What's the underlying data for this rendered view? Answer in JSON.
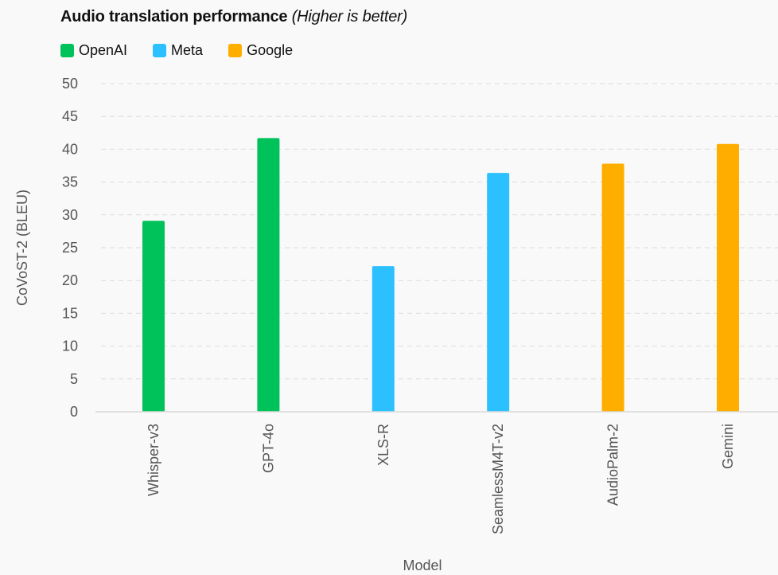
{
  "header": {
    "title": "Audio translation performance",
    "subtitle": "(Higher is better)"
  },
  "legend": [
    {
      "name": "OpenAI",
      "color": "#00c25b"
    },
    {
      "name": "Meta",
      "color": "#2cc0ff"
    },
    {
      "name": "Google",
      "color": "#ffae00"
    }
  ],
  "chart_data": {
    "type": "bar",
    "title": "Audio translation performance (Higher is better)",
    "xlabel": "Model",
    "ylabel": "CoVoST-2 (BLEU)",
    "ylim": [
      0,
      50
    ],
    "yticks": [
      0,
      5,
      10,
      15,
      20,
      25,
      30,
      35,
      40,
      45,
      50
    ],
    "grid": true,
    "legend_position": "top-left",
    "categories": [
      "Whisper-v3",
      "GPT-4o",
      "XLS-R",
      "SeamlessM4T-v2",
      "AudioPalm-2",
      "Gemini"
    ],
    "values": [
      29.1,
      41.7,
      22.2,
      36.4,
      37.8,
      40.8
    ],
    "groups": [
      "OpenAI",
      "OpenAI",
      "Meta",
      "Meta",
      "Google",
      "Google"
    ],
    "colors": [
      "#00c25b",
      "#00c25b",
      "#2cc0ff",
      "#2cc0ff",
      "#ffae00",
      "#ffae00"
    ]
  }
}
